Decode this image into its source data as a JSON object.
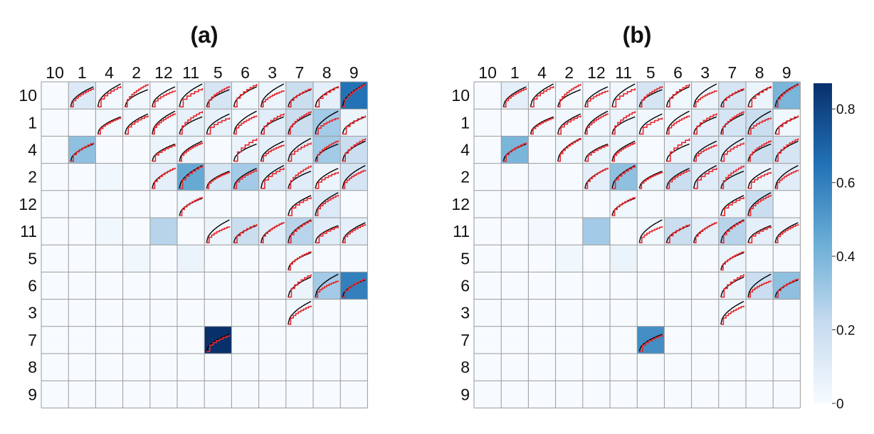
{
  "chart_data": [
    {
      "type": "heatmap",
      "title": "(a)",
      "labels": [
        "10",
        "1",
        "4",
        "2",
        "12",
        "11",
        "5",
        "6",
        "3",
        "7",
        "8",
        "9"
      ],
      "values": [
        [
          0,
          0.12,
          0.02,
          0.03,
          0.02,
          0.05,
          0.15,
          0.03,
          0.05,
          0.2,
          0.08,
          0.65
        ],
        [
          0,
          0,
          0.03,
          0.03,
          0.03,
          0.07,
          0.07,
          0.03,
          0.1,
          0.2,
          0.3,
          0.05
        ],
        [
          0,
          0.35,
          0,
          0,
          0.05,
          0.05,
          0,
          0.05,
          0.08,
          0.1,
          0.3,
          0.2
        ],
        [
          0,
          0,
          0.03,
          0,
          0.08,
          0.45,
          0.15,
          0.3,
          0.12,
          0.1,
          0.05,
          0.15
        ],
        [
          0,
          0,
          0,
          0,
          0,
          0.03,
          0,
          0,
          0,
          0.05,
          0.12,
          0
        ],
        [
          0,
          0,
          0.03,
          0,
          0.25,
          0,
          0.05,
          0.2,
          0.1,
          0.25,
          0.1,
          0.08
        ],
        [
          0,
          0,
          0,
          0.03,
          0,
          0.05,
          0,
          0,
          0,
          0.03,
          0,
          0
        ],
        [
          0,
          0,
          0,
          0,
          0,
          0,
          0,
          0,
          0,
          0.05,
          0.3,
          0.6
        ],
        [
          0,
          0,
          0,
          0,
          0,
          0,
          0,
          0,
          0,
          0.03,
          0,
          0
        ],
        [
          0,
          0,
          0,
          0,
          0,
          0,
          0.95,
          0,
          0,
          0,
          0,
          0
        ],
        [
          0,
          0,
          0,
          0,
          0,
          0,
          0,
          0,
          0,
          0,
          0,
          0
        ],
        [
          0,
          0,
          0,
          0,
          0,
          0,
          0,
          0,
          0,
          0,
          0,
          0
        ]
      ]
    },
    {
      "type": "heatmap",
      "title": "(b)",
      "labels": [
        "10",
        "1",
        "4",
        "2",
        "12",
        "11",
        "5",
        "6",
        "3",
        "7",
        "8",
        "9"
      ],
      "values": [
        [
          0,
          0.08,
          0.02,
          0.02,
          0.02,
          0.03,
          0.15,
          0.03,
          0.05,
          0.15,
          0.05,
          0.4
        ],
        [
          0,
          0,
          0.02,
          0.03,
          0.03,
          0.05,
          0.03,
          0.03,
          0.08,
          0.15,
          0.2,
          0.03
        ],
        [
          0,
          0.4,
          0,
          0.03,
          0.05,
          0.05,
          0,
          0.05,
          0.1,
          0.1,
          0.2,
          0.15
        ],
        [
          0,
          0,
          0.02,
          0,
          0.08,
          0.35,
          0.05,
          0.2,
          0.1,
          0.15,
          0.05,
          0.1
        ],
        [
          0,
          0,
          0,
          0,
          0,
          0.03,
          0,
          0,
          0,
          0.05,
          0.2,
          0
        ],
        [
          0,
          0,
          0.02,
          0,
          0.3,
          0,
          0.03,
          0.2,
          0.08,
          0.25,
          0.08,
          0.05
        ],
        [
          0,
          0,
          0,
          0.03,
          0,
          0.05,
          0,
          0,
          0,
          0.05,
          0,
          0
        ],
        [
          0,
          0,
          0,
          0,
          0,
          0,
          0,
          0,
          0,
          0.05,
          0.2,
          0.35
        ],
        [
          0,
          0,
          0,
          0,
          0,
          0,
          0,
          0,
          0,
          0.03,
          0,
          0
        ],
        [
          0,
          0,
          0,
          0,
          0,
          0,
          0.55,
          0,
          0,
          0,
          0,
          0
        ],
        [
          0,
          0,
          0,
          0,
          0,
          0,
          0,
          0,
          0,
          0,
          0,
          0
        ],
        [
          0,
          0,
          0,
          0,
          0,
          0,
          0,
          0,
          0,
          0,
          0,
          0
        ]
      ]
    }
  ],
  "colorbar": {
    "min": 0,
    "max": 0.87,
    "ticks": [
      {
        "value": 0,
        "label": "0"
      },
      {
        "value": 0.2,
        "label": "0.2"
      },
      {
        "value": 0.4,
        "label": "0.4"
      },
      {
        "value": 0.6,
        "label": "0.6"
      },
      {
        "value": 0.8,
        "label": "0.8"
      }
    ],
    "colors": [
      "#f7fbff",
      "#c6dbef",
      "#6baed6",
      "#2171b5",
      "#08306b"
    ]
  },
  "series_colors": {
    "fitted": "#e8262b",
    "reference": "#000000"
  }
}
